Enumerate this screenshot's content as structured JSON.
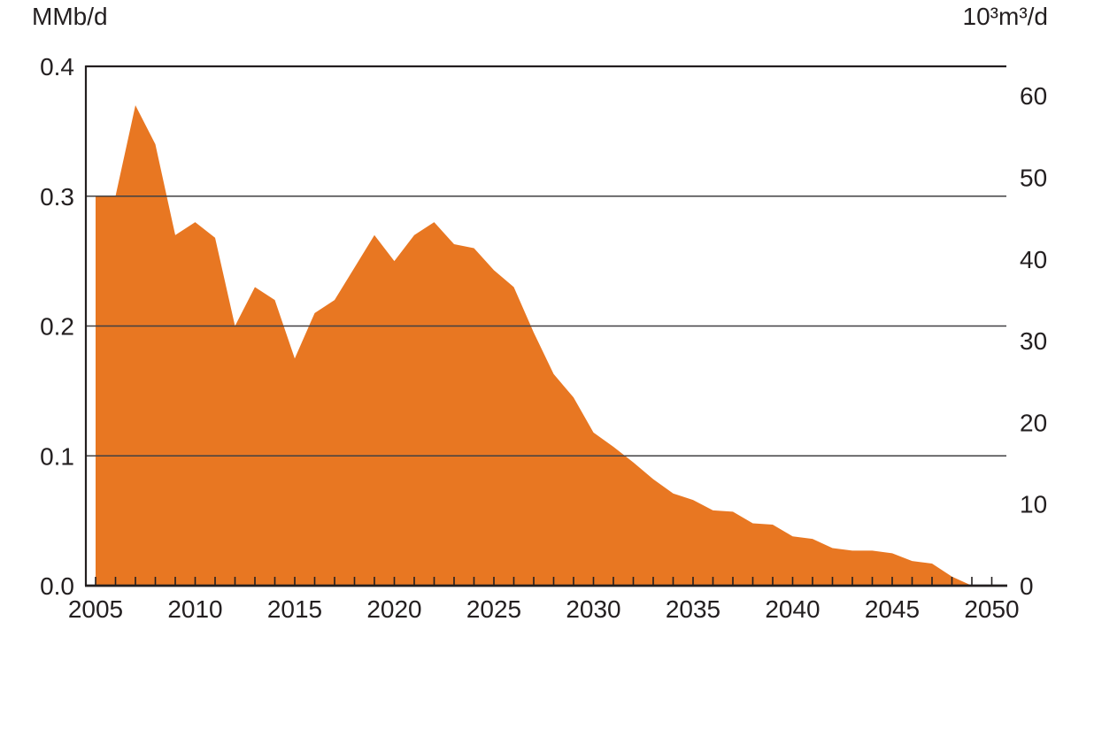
{
  "colors": {
    "area": "#E87722",
    "grid": "#414042",
    "axis": "#231F20",
    "text": "#231F20",
    "background": "#FFFFFF"
  },
  "chart_data": {
    "type": "area",
    "title": "",
    "legend": "none",
    "grid": {
      "lines_at": [
        0.1,
        0.2,
        0.3
      ]
    },
    "left_axis": {
      "label": "MMb/d",
      "min": 0,
      "max": 0.4,
      "ticks": [
        0,
        0.1,
        0.2,
        0.3,
        0.4
      ]
    },
    "right_axis": {
      "label": "10³m³/d",
      "min": 0,
      "max": 63.6,
      "ticks": [
        0,
        10,
        20,
        30,
        40,
        50,
        60
      ]
    },
    "x_axis": {
      "min": 2005,
      "max": 2050,
      "tick_interval": 1,
      "label_interval": 5,
      "labels": [
        2005,
        2010,
        2015,
        2020,
        2025,
        2030,
        2035,
        2040,
        2045,
        2050
      ]
    },
    "series": [
      {
        "x": [
          2005,
          2006,
          2007,
          2008,
          2009,
          2010,
          2011,
          2012,
          2013,
          2014,
          2015,
          2016,
          2017,
          2018,
          2019,
          2020,
          2021,
          2022,
          2023,
          2024,
          2025,
          2026,
          2027,
          2028,
          2029,
          2030,
          2031,
          2032,
          2033,
          2034,
          2035,
          2036,
          2037,
          2038,
          2039,
          2040,
          2041,
          2042,
          2043,
          2044,
          2045,
          2046,
          2047,
          2048,
          2049,
          2050
        ],
        "y": [
          0.3,
          0.3,
          0.37,
          0.34,
          0.27,
          0.28,
          0.268,
          0.2,
          0.23,
          0.22,
          0.175,
          0.21,
          0.22,
          0.245,
          0.27,
          0.25,
          0.27,
          0.28,
          0.263,
          0.26,
          0.243,
          0.23,
          0.195,
          0.163,
          0.145,
          0.118,
          0.107,
          0.095,
          0.082,
          0.071,
          0.066,
          0.058,
          0.057,
          0.048,
          0.047,
          0.038,
          0.036,
          0.029,
          0.027,
          0.027,
          0.025,
          0.019,
          0.017,
          0.007,
          0.0,
          0.0
        ]
      }
    ]
  }
}
